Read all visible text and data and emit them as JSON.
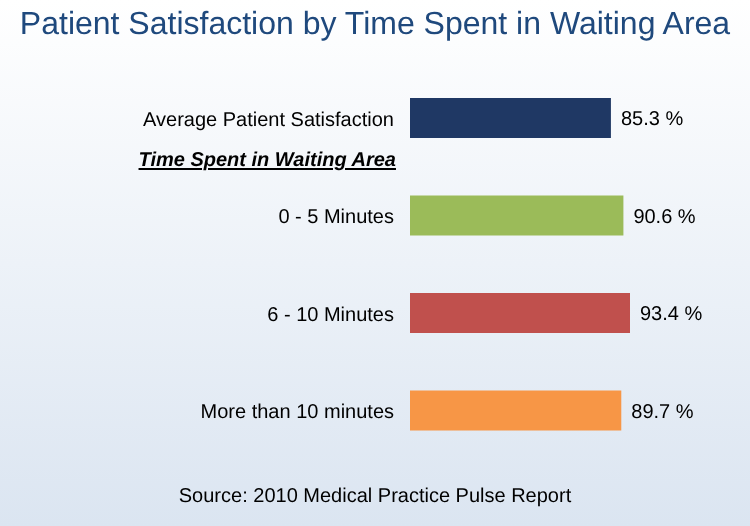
{
  "chart_data": {
    "type": "bar",
    "orientation": "horizontal",
    "title": "Patient Satisfaction by Time Spent in Waiting Area",
    "categories": [
      "Average Patient Satisfaction",
      "0 - 5 Minutes",
      "6 - 10 Minutes",
      "More than 10 minutes"
    ],
    "values": [
      85.3,
      90.6,
      93.4,
      89.7
    ],
    "colors": [
      "#1f3864",
      "#9bbb59",
      "#c0504d",
      "#f79646"
    ],
    "value_labels": [
      "85.3 %",
      "90.6 %",
      "93.4 %",
      "89.7 %"
    ],
    "annotations": [
      "Time Spent in Waiting Area",
      "Source: 2010 Medical Practice Pulse Report"
    ]
  }
}
